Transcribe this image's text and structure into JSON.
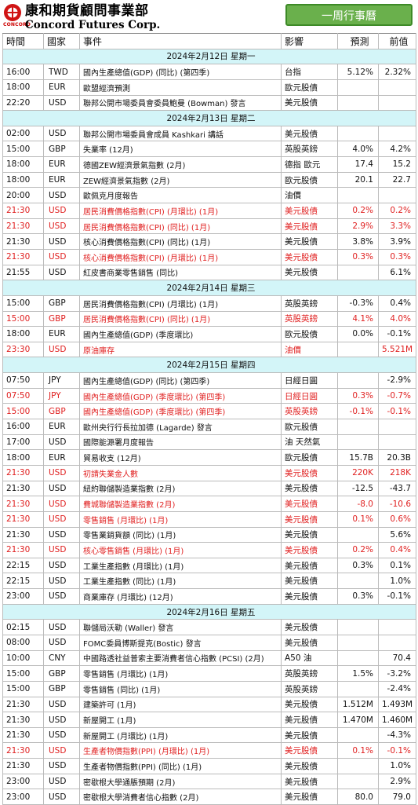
{
  "brand": {
    "name_cn": "康和期貨顧問事業部",
    "name_en": "Concord Futures Corp.",
    "tag": "CONCORD"
  },
  "title_button": "一周行事曆",
  "columns": [
    "時間",
    "國家",
    "事件",
    "影響",
    "預測",
    "前值"
  ],
  "colors": {
    "highlight": "#e02020",
    "date_row": "#d3f5f8",
    "button": "#6ab04c"
  },
  "sections": [
    {
      "date": "2024年2月12日 星期一",
      "rows": [
        {
          "time": "16:00",
          "country": "TWD",
          "event": "國內生產總值(GDP) (同比) (第四季)",
          "impact": "台指",
          "forecast": "5.12%",
          "previous": "2.32%",
          "hl": false
        },
        {
          "time": "18:00",
          "country": "EUR",
          "event": "歐盟經濟預測",
          "impact": "歐元股債",
          "forecast": "",
          "previous": "",
          "hl": false
        },
        {
          "time": "22:20",
          "country": "USD",
          "event": "聯邦公開市場委員會委員鮑曼 (Bowman) 發言",
          "impact": "美元股債",
          "forecast": "",
          "previous": "",
          "hl": false
        }
      ]
    },
    {
      "date": "2024年2月13日 星期二",
      "rows": [
        {
          "time": "02:00",
          "country": "USD",
          "event": "聯邦公開市場委員會成員 Kashkari 講話",
          "impact": "美元股債",
          "forecast": "",
          "previous": "",
          "hl": false
        },
        {
          "time": "15:00",
          "country": "GBP",
          "event": "失業率 (12月)",
          "impact": "英股英鎊",
          "forecast": "4.0%",
          "previous": "4.2%",
          "hl": false
        },
        {
          "time": "18:00",
          "country": "EUR",
          "event": "德國ZEW經濟景氣指數 (2月)",
          "impact": "德指 歐元",
          "forecast": "17.4",
          "previous": "15.2",
          "hl": false
        },
        {
          "time": "18:00",
          "country": "EUR",
          "event": "ZEW經濟景氣指數 (2月)",
          "impact": "歐元股債",
          "forecast": "20.1",
          "previous": "22.7",
          "hl": false
        },
        {
          "time": "20:00",
          "country": "USD",
          "event": "歐佩克月度報告",
          "impact": "油價",
          "forecast": "",
          "previous": "",
          "hl": false
        },
        {
          "time": "21:30",
          "country": "USD",
          "event": "居民消費價格指數(CPI) (月環比) (1月)",
          "impact": "美元股債",
          "forecast": "0.2%",
          "previous": "0.2%",
          "hl": true
        },
        {
          "time": "21:30",
          "country": "USD",
          "event": "居民消費價格指數(CPI) (同比) (1月)",
          "impact": "美元股債",
          "forecast": "2.9%",
          "previous": "3.3%",
          "hl": true
        },
        {
          "time": "21:30",
          "country": "USD",
          "event": "核心消費價格指數(CPI) (同比) (1月)",
          "impact": "美元股債",
          "forecast": "3.8%",
          "previous": "3.9%",
          "hl": false
        },
        {
          "time": "21:30",
          "country": "USD",
          "event": "核心消費價格指數(CPI) (月環比) (1月)",
          "impact": "美元股債",
          "forecast": "0.3%",
          "previous": "0.3%",
          "hl": true
        },
        {
          "time": "21:55",
          "country": "USD",
          "event": "紅皮書商業零售銷售 (同比)",
          "impact": "美元股債",
          "forecast": "",
          "previous": "6.1%",
          "hl": false
        }
      ]
    },
    {
      "date": "2024年2月14日 星期三",
      "rows": [
        {
          "time": "15:00",
          "country": "GBP",
          "event": "居民消費價格指數(CPI) (月環比) (1月)",
          "impact": "英股英鎊",
          "forecast": "-0.3%",
          "previous": "0.4%",
          "hl": false
        },
        {
          "time": "15:00",
          "country": "GBP",
          "event": "居民消費價格指數(CPI) (同比) (1月)",
          "impact": "英股英鎊",
          "forecast": "4.1%",
          "previous": "4.0%",
          "hl": true
        },
        {
          "time": "18:00",
          "country": "EUR",
          "event": "國內生產總值(GDP) (季度環比)",
          "impact": "歐元股債",
          "forecast": "0.0%",
          "previous": "-0.1%",
          "hl": false
        },
        {
          "time": "23:30",
          "country": "USD",
          "event": "原油庫存",
          "impact": "油價",
          "forecast": "",
          "previous": "5.521M",
          "hl": true
        }
      ]
    },
    {
      "date": "2024年2月15日 星期四",
      "rows": [
        {
          "time": "07:50",
          "country": "JPY",
          "event": "國內生產總值(GDP) (同比) (第四季)",
          "impact": "日經日圓",
          "forecast": "",
          "previous": "-2.9%",
          "hl": false
        },
        {
          "time": "07:50",
          "country": "JPY",
          "event": "國內生產總值(GDP) (季度環比) (第四季)",
          "impact": "日經日圓",
          "forecast": "0.3%",
          "previous": "-0.7%",
          "hl": true
        },
        {
          "time": "15:00",
          "country": "GBP",
          "event": "國內生產總值(GDP) (季度環比) (第四季)",
          "impact": "英股英鎊",
          "forecast": "-0.1%",
          "previous": "-0.1%",
          "hl": true
        },
        {
          "time": "16:00",
          "country": "EUR",
          "event": "歐州央行行長拉加德 (Lagarde) 發言",
          "impact": "歐元股債",
          "forecast": "",
          "previous": "",
          "hl": false
        },
        {
          "time": "17:00",
          "country": "USD",
          "event": "國際能源署月度報告",
          "impact": "油 天然氣",
          "forecast": "",
          "previous": "",
          "hl": false
        },
        {
          "time": "18:00",
          "country": "EUR",
          "event": "貿易收支 (12月)",
          "impact": "歐元股債",
          "forecast": "15.7B",
          "previous": "20.3B",
          "hl": false
        },
        {
          "time": "21:30",
          "country": "USD",
          "event": "初請失業金人數",
          "impact": "美元股債",
          "forecast": "220K",
          "previous": "218K",
          "hl": true
        },
        {
          "time": "21:30",
          "country": "USD",
          "event": "紐約聯儲製造業指數 (2月)",
          "impact": "美元股債",
          "forecast": "-12.5",
          "previous": "-43.7",
          "hl": false
        },
        {
          "time": "21:30",
          "country": "USD",
          "event": "費城聯儲製造業指數 (2月)",
          "impact": "美元股債",
          "forecast": "-8.0",
          "previous": "-10.6",
          "hl": true
        },
        {
          "time": "21:30",
          "country": "USD",
          "event": "零售銷售 (月環比) (1月)",
          "impact": "美元股債",
          "forecast": "0.1%",
          "previous": "0.6%",
          "hl": true
        },
        {
          "time": "21:30",
          "country": "USD",
          "event": "零售業銷貨額 (同比) (1月)",
          "impact": "美元股債",
          "forecast": "",
          "previous": "5.6%",
          "hl": false
        },
        {
          "time": "21:30",
          "country": "USD",
          "event": "核心零售銷售 (月環比) (1月)",
          "impact": "美元股債",
          "forecast": "0.2%",
          "previous": "0.4%",
          "hl": true
        },
        {
          "time": "22:15",
          "country": "USD",
          "event": "工業生產指數 (月環比) (1月)",
          "impact": "美元股債",
          "forecast": "0.3%",
          "previous": "0.1%",
          "hl": false
        },
        {
          "time": "22:15",
          "country": "USD",
          "event": "工業生產指數 (同比) (1月)",
          "impact": "美元股債",
          "forecast": "",
          "previous": "1.0%",
          "hl": false
        },
        {
          "time": "23:00",
          "country": "USD",
          "event": "商業庫存 (月環比) (12月)",
          "impact": "美元股債",
          "forecast": "0.3%",
          "previous": "-0.1%",
          "hl": false
        }
      ]
    },
    {
      "date": "2024年2月16日 星期五",
      "rows": [
        {
          "time": "02:15",
          "country": "USD",
          "event": "聯儲局沃勒 (Waller) 發言",
          "impact": "美元股債",
          "forecast": "",
          "previous": "",
          "hl": false
        },
        {
          "time": "08:00",
          "country": "USD",
          "event": "FOMC委員博斯提克(Bostic) 發言",
          "impact": "美元股債",
          "forecast": "",
          "previous": "",
          "hl": false
        },
        {
          "time": "10:00",
          "country": "CNY",
          "event": "中國路透社益普索主要消費者信心指數 (PCSI) (2月)",
          "impact": "A50 油",
          "forecast": "",
          "previous": "70.4",
          "hl": false
        },
        {
          "time": "15:00",
          "country": "GBP",
          "event": "零售銷售 (月環比) (1月)",
          "impact": "英股英鎊",
          "forecast": "1.5%",
          "previous": "-3.2%",
          "hl": false
        },
        {
          "time": "15:00",
          "country": "GBP",
          "event": "零售銷售 (同比) (1月)",
          "impact": "英股英鎊",
          "forecast": "",
          "previous": "-2.4%",
          "hl": false
        },
        {
          "time": "21:30",
          "country": "USD",
          "event": "建築許可 (1月)",
          "impact": "美元股債",
          "forecast": "1.512M",
          "previous": "1.493M",
          "hl": false
        },
        {
          "time": "21:30",
          "country": "USD",
          "event": "新屋開工 (1月)",
          "impact": "美元股債",
          "forecast": "1.470M",
          "previous": "1.460M",
          "hl": false
        },
        {
          "time": "21:30",
          "country": "USD",
          "event": "新屋開工 (月環比) (1月)",
          "impact": "美元股債",
          "forecast": "",
          "previous": "-4.3%",
          "hl": false
        },
        {
          "time": "21:30",
          "country": "USD",
          "event": "生產者物價指數(PPI) (月環比) (1月)",
          "impact": "美元股債",
          "forecast": "0.1%",
          "previous": "-0.1%",
          "hl": true
        },
        {
          "time": "21:30",
          "country": "USD",
          "event": "生產者物價指數(PPI) (同比) (1月)",
          "impact": "美元股債",
          "forecast": "",
          "previous": "1.0%",
          "hl": false
        },
        {
          "time": "23:00",
          "country": "USD",
          "event": "密歇根大學通脹預期 (2月)",
          "impact": "美元股債",
          "forecast": "",
          "previous": "2.9%",
          "hl": false
        },
        {
          "time": "23:00",
          "country": "USD",
          "event": "密歇根大學消費者信心指數 (2月)",
          "impact": "美元股債",
          "forecast": "80.0",
          "previous": "79.0",
          "hl": false
        }
      ]
    }
  ]
}
